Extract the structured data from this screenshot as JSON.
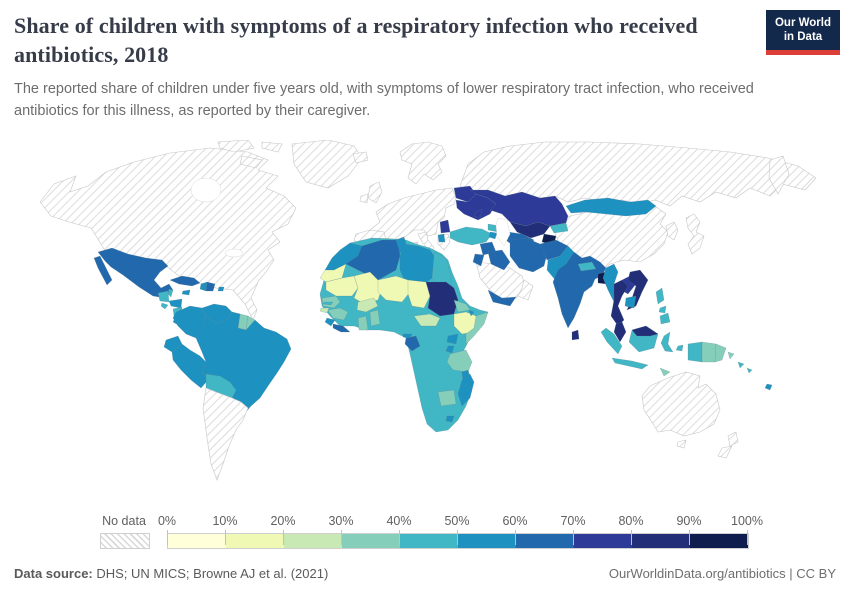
{
  "header": {
    "title": "Share of children with symptoms of a respiratory infection who received antibiotics, 2018",
    "subtitle": "The reported share of children under five years old, with symptoms of lower respiratory tract infection, who received antibiotics for this illness, as reported by their caregiver.",
    "logo": {
      "line1": "Our World",
      "line2": "in Data",
      "bg_color": "#12294b",
      "accent_color": "#dc3e38"
    }
  },
  "legend": {
    "no_data_label": "No data",
    "ticks": [
      "0%",
      "10%",
      "20%",
      "30%",
      "40%",
      "50%",
      "60%",
      "70%",
      "80%",
      "90%",
      "100%"
    ],
    "colors": [
      "#ffffd9",
      "#eff9b4",
      "#c8e9b4",
      "#85cfba",
      "#41b6c4",
      "#1d91c0",
      "#2268ad",
      "#2e3a97",
      "#222e77",
      "#0f1d4e"
    ]
  },
  "footer": {
    "source_label": "Data source:",
    "source_text": " DHS; UN MICS; Browne AJ et al. (2021)",
    "right_text": "OurWorldinData.org/antibiotics | CC BY"
  },
  "map": {
    "ocean_color": "#ffffff",
    "no_data_region_ids": [
      "north-america",
      "arctic-1",
      "arctic-2",
      "arctic-3",
      "greenland",
      "iceland",
      "scandinavia",
      "uk",
      "ireland",
      "europe-main",
      "iberia",
      "italy",
      "sicily",
      "sardinia",
      "greece",
      "russia",
      "kamchatka",
      "china",
      "koreas",
      "japan",
      "saudi-arabia",
      "oman",
      "australia",
      "tasmania",
      "new-zealand-north",
      "new-zealand-south",
      "argentina-chile"
    ],
    "extra_fills": {
      "africa-base": 5,
      "malaysia-borneo": 9
    }
  },
  "chart_data": {
    "type": "choropleth",
    "title": "Share of children with symptoms of a respiratory infection who received antibiotics, 2018",
    "unit": "% of children under five with lower respiratory infection symptoms who received antibiotics",
    "year": 2018,
    "legend_buckets": [
      "0-10%",
      "10-20%",
      "20-30%",
      "30-40%",
      "40-50%",
      "50-60%",
      "60-70%",
      "70-80%",
      "80-90%",
      "90-100%"
    ],
    "legend_position": "bottom",
    "no_data": [
      "Canada",
      "United States",
      "Greenland",
      "Iceland",
      "Western & Central Europe",
      "Russia",
      "China",
      "Japan",
      "North & South Korea",
      "Saudi Arabia",
      "Oman",
      "Australia",
      "New Zealand",
      "Argentina",
      "Chile"
    ],
    "regions": [
      {
        "id": "mexico",
        "name": "Mexico",
        "bucket": 7,
        "value": "60-70%"
      },
      {
        "id": "guatemala",
        "name": "Guatemala",
        "bucket": 5,
        "value": "40-50%"
      },
      {
        "id": "belize",
        "name": "Belize",
        "bucket": 5,
        "value": "40-50%"
      },
      {
        "id": "el-salvador",
        "name": "El Salvador",
        "bucket": 5,
        "value": "40-50%"
      },
      {
        "id": "honduras",
        "name": "Honduras",
        "bucket": 6,
        "value": "50-60%"
      },
      {
        "id": "nicaragua",
        "name": "Nicaragua",
        "bucket": 5,
        "value": "40-50%"
      },
      {
        "id": "costa-rica",
        "name": "Costa Rica",
        "bucket": 6,
        "value": "50-60%"
      },
      {
        "id": "panama",
        "name": "Panama",
        "bucket": 10,
        "value": "90-100%"
      },
      {
        "id": "cuba",
        "name": "Cuba",
        "bucket": 7,
        "value": "60-70%"
      },
      {
        "id": "jamaica",
        "name": "Jamaica",
        "bucket": 6,
        "value": "50-60%"
      },
      {
        "id": "haiti",
        "name": "Haiti",
        "bucket": 6,
        "value": "50-60%"
      },
      {
        "id": "dominican-republic",
        "name": "Dominican Republic",
        "bucket": 7,
        "value": "60-70%"
      },
      {
        "id": "puerto-rico",
        "name": "Puerto Rico",
        "bucket": 6,
        "value": "50-60%"
      },
      {
        "id": "colombia",
        "name": "Colombia",
        "bucket": 6,
        "value": "50-60%"
      },
      {
        "id": "venezuela",
        "name": "Venezuela",
        "bucket": 6,
        "value": "50-60%"
      },
      {
        "id": "guyana",
        "name": "Guyana",
        "bucket": 3,
        "value": "20-30%"
      },
      {
        "id": "suriname",
        "name": "Suriname",
        "bucket": 4,
        "value": "30-40%"
      },
      {
        "id": "french-guiana",
        "name": "French Guiana",
        "bucket": 4,
        "value": "30-40%"
      },
      {
        "id": "ecuador",
        "name": "Ecuador",
        "bucket": 6,
        "value": "50-60%"
      },
      {
        "id": "peru",
        "name": "Peru",
        "bucket": 6,
        "value": "50-60%"
      },
      {
        "id": "brazil",
        "name": "Brazil",
        "bucket": 6,
        "value": "50-60%"
      },
      {
        "id": "bolivia",
        "name": "Bolivia",
        "bucket": 5,
        "value": "40-50%"
      },
      {
        "id": "paraguay",
        "name": "Paraguay",
        "bucket": 3,
        "value": "20-30%"
      },
      {
        "id": "belarus",
        "name": "Belarus",
        "bucket": 8,
        "value": "70-80%"
      },
      {
        "id": "ukraine",
        "name": "Ukraine",
        "bucket": 8,
        "value": "70-80%"
      },
      {
        "id": "moldova",
        "name": "Moldova",
        "bucket": 8,
        "value": "70-80%"
      },
      {
        "id": "serbia",
        "name": "Serbia",
        "bucket": 8,
        "value": "70-80%"
      },
      {
        "id": "albania",
        "name": "Albania",
        "bucket": 6,
        "value": "50-60%"
      },
      {
        "id": "turkey",
        "name": "Turkey",
        "bucket": 5,
        "value": "40-50%"
      },
      {
        "id": "georgia",
        "name": "Georgia",
        "bucket": 5,
        "value": "40-50%"
      },
      {
        "id": "armenia",
        "name": "Armenia",
        "bucket": 6,
        "value": "50-60%"
      },
      {
        "id": "azerbaijan",
        "name": "Azerbaijan",
        "bucket": 7,
        "value": "60-70%"
      },
      {
        "id": "syria",
        "name": "Syria",
        "bucket": 7,
        "value": "60-70%"
      },
      {
        "id": "iraq",
        "name": "Iraq",
        "bucket": 7,
        "value": "60-70%"
      },
      {
        "id": "jordan",
        "name": "Jordan",
        "bucket": 7,
        "value": "60-70%"
      },
      {
        "id": "yemen",
        "name": "Yemen",
        "bucket": 7,
        "value": "60-70%"
      },
      {
        "id": "iran",
        "name": "Iran",
        "bucket": 7,
        "value": "60-70%"
      },
      {
        "id": "afghanistan",
        "name": "Afghanistan",
        "bucket": 7,
        "value": "60-70%"
      },
      {
        "id": "pakistan",
        "name": "Pakistan",
        "bucket": 6,
        "value": "50-60%"
      },
      {
        "id": "turkmenistan",
        "name": "Turkmenistan",
        "bucket": 7,
        "value": "60-70%"
      },
      {
        "id": "uzbekistan",
        "name": "Uzbekistan",
        "bucket": 9,
        "value": "80-90%"
      },
      {
        "id": "tajikistan",
        "name": "Tajikistan",
        "bucket": 10,
        "value": "90-100%"
      },
      {
        "id": "kyrgyzstan",
        "name": "Kyrgyzstan",
        "bucket": 5,
        "value": "40-50%"
      },
      {
        "id": "kazakhstan",
        "name": "Kazakhstan",
        "bucket": 8,
        "value": "70-80%"
      },
      {
        "id": "mongolia",
        "name": "Mongolia",
        "bucket": 6,
        "value": "50-60%"
      },
      {
        "id": "india",
        "name": "India",
        "bucket": 7,
        "value": "60-70%"
      },
      {
        "id": "nepal",
        "name": "Nepal",
        "bucket": 5,
        "value": "40-50%"
      },
      {
        "id": "bangladesh",
        "name": "Bangladesh",
        "bucket": 10,
        "value": "90-100%"
      },
      {
        "id": "sri-lanka",
        "name": "Sri Lanka",
        "bucket": 9,
        "value": "80-90%"
      },
      {
        "id": "myanmar",
        "name": "Myanmar",
        "bucket": 6,
        "value": "50-60%"
      },
      {
        "id": "thailand",
        "name": "Thailand",
        "bucket": 9,
        "value": "80-90%"
      },
      {
        "id": "laos",
        "name": "Laos",
        "bucket": 8,
        "value": "70-80%"
      },
      {
        "id": "vietnam",
        "name": "Vietnam",
        "bucket": 9,
        "value": "80-90%"
      },
      {
        "id": "cambodia",
        "name": "Cambodia",
        "bucket": 6,
        "value": "50-60%"
      },
      {
        "id": "malaysia-peninsula",
        "name": "Malaysia",
        "bucket": 9,
        "value": "80-90%"
      },
      {
        "id": "indonesia",
        "name": "Indonesia",
        "bucket": 5,
        "value": "40-50%"
      },
      {
        "id": "philippines",
        "name": "Philippines",
        "bucket": 5,
        "value": "40-50%"
      },
      {
        "id": "papua-new-guinea",
        "name": "Papua New Guinea",
        "bucket": 4,
        "value": "30-40%"
      },
      {
        "id": "timor-leste",
        "name": "Timor-Leste",
        "bucket": 4,
        "value": "30-40%"
      },
      {
        "id": "solomon-islands",
        "name": "Solomon Islands",
        "bucket": 5,
        "value": "40-50%"
      },
      {
        "id": "fiji",
        "name": "Fiji",
        "bucket": 6,
        "value": "50-60%"
      },
      {
        "id": "morocco",
        "name": "Morocco",
        "bucket": 6,
        "value": "50-60%"
      },
      {
        "id": "western-sahara",
        "name": "Western Sahara",
        "bucket": 2,
        "value": "10-20%"
      },
      {
        "id": "algeria",
        "name": "Algeria",
        "bucket": 7,
        "value": "60-70%"
      },
      {
        "id": "tunisia",
        "name": "Tunisia",
        "bucket": 6,
        "value": "50-60%"
      },
      {
        "id": "libya",
        "name": "Libya",
        "bucket": 6,
        "value": "50-60%"
      },
      {
        "id": "egypt",
        "name": "Egypt",
        "bucket": 5,
        "value": "40-50%"
      },
      {
        "id": "mauritania",
        "name": "Mauritania",
        "bucket": 2,
        "value": "10-20%"
      },
      {
        "id": "mali",
        "name": "Mali",
        "bucket": 2,
        "value": "10-20%"
      },
      {
        "id": "niger",
        "name": "Niger",
        "bucket": 2,
        "value": "10-20%"
      },
      {
        "id": "chad",
        "name": "Chad",
        "bucket": 2,
        "value": "10-20%"
      },
      {
        "id": "sudan",
        "name": "Sudan",
        "bucket": 9,
        "value": "80-90%"
      },
      {
        "id": "eritrea",
        "name": "Eritrea",
        "bucket": 4,
        "value": "30-40%"
      },
      {
        "id": "ethiopia",
        "name": "Ethiopia",
        "bucket": 2,
        "value": "10-20%"
      },
      {
        "id": "somalia",
        "name": "Somalia",
        "bucket": 4,
        "value": "30-40%"
      },
      {
        "id": "djibouti",
        "name": "Djibouti",
        "bucket": 6,
        "value": "50-60%"
      },
      {
        "id": "senegal",
        "name": "Senegal",
        "bucket": 4,
        "value": "30-40%"
      },
      {
        "id": "gambia",
        "name": "Gambia",
        "bucket": 5,
        "value": "40-50%"
      },
      {
        "id": "guinea-bissau",
        "name": "Guinea-Bissau",
        "bucket": 3,
        "value": "20-30%"
      },
      {
        "id": "guinea",
        "name": "Guinea",
        "bucket": 4,
        "value": "30-40%"
      },
      {
        "id": "sierra-leone",
        "name": "Sierra Leone",
        "bucket": 6,
        "value": "50-60%"
      },
      {
        "id": "liberia",
        "name": "Liberia",
        "bucket": 7,
        "value": "60-70%"
      },
      {
        "id": "",
        "name": "Cote d'Ivoire",
        "bucket": 5,
        "value": "40-50%"
      },
      {
        "id": "ghana",
        "name": "Ghana",
        "bucket": 4,
        "value": "30-40%"
      },
      {
        "id": "burkina-faso",
        "name": "Burkina Faso",
        "bucket": 3,
        "value": "20-30%"
      },
      {
        "id": "benin-togo",
        "name": "Togo & Benin",
        "bucket": 4,
        "value": "30-40%"
      },
      {
        "id": "",
        "name": "Nigeria",
        "bucket": 5,
        "value": "40-50%"
      },
      {
        "id": "",
        "name": "Cameroon",
        "bucket": 5,
        "value": "40-50%"
      },
      {
        "id": "central-african-republic",
        "name": "Central African Republic",
        "bucket": 3,
        "value": "20-30%"
      },
      {
        "id": "",
        "name": "South Sudan",
        "bucket": 5,
        "value": "40-50%"
      },
      {
        "id": "gabon",
        "name": "Gabon",
        "bucket": 7,
        "value": "60-70%"
      },
      {
        "id": "equatorial-guinea",
        "name": "Equatorial Guinea",
        "bucket": 6,
        "value": "50-60%"
      },
      {
        "id": "uganda",
        "name": "Uganda",
        "bucket": 6,
        "value": "50-60%"
      },
      {
        "id": "",
        "name": "Kenya",
        "bucket": 5,
        "value": "40-50%"
      },
      {
        "id": "rwanda-burundi",
        "name": "Rwanda & Burundi",
        "bucket": 6,
        "value": "50-60%"
      },
      {
        "id": "tanzania",
        "name": "Tanzania",
        "bucket": 4,
        "value": "30-40%"
      },
      {
        "id": "malawi",
        "name": "Malawi",
        "bucket": 6,
        "value": "50-60%"
      },
      {
        "id": "",
        "name": "Mozambique",
        "bucket": 5,
        "value": "40-50%"
      },
      {
        "id": "",
        "name": "Zambia",
        "bucket": 5,
        "value": "40-50%"
      },
      {
        "id": "",
        "name": "Angola",
        "bucket": 5,
        "value": "40-50%"
      },
      {
        "id": "",
        "name": "Democratic Republic of Congo",
        "bucket": 5,
        "value": "40-50%"
      },
      {
        "id": "",
        "name": "Congo",
        "bucket": 5,
        "value": "40-50%"
      },
      {
        "id": "",
        "name": "Zimbabwe",
        "bucket": 5,
        "value": "40-50%"
      },
      {
        "id": "botswana",
        "name": "Botswana",
        "bucket": 4,
        "value": "30-40%"
      },
      {
        "id": "",
        "name": "Namibia",
        "bucket": 5,
        "value": "40-50%"
      },
      {
        "id": "",
        "name": "South Africa",
        "bucket": 5,
        "value": "40-50%"
      },
      {
        "id": "lesotho",
        "name": "Lesotho",
        "bucket": 6,
        "value": "50-60%"
      },
      {
        "id": "madagascar",
        "name": "Madagascar",
        "bucket": 6,
        "value": "50-60%"
      }
    ]
  }
}
